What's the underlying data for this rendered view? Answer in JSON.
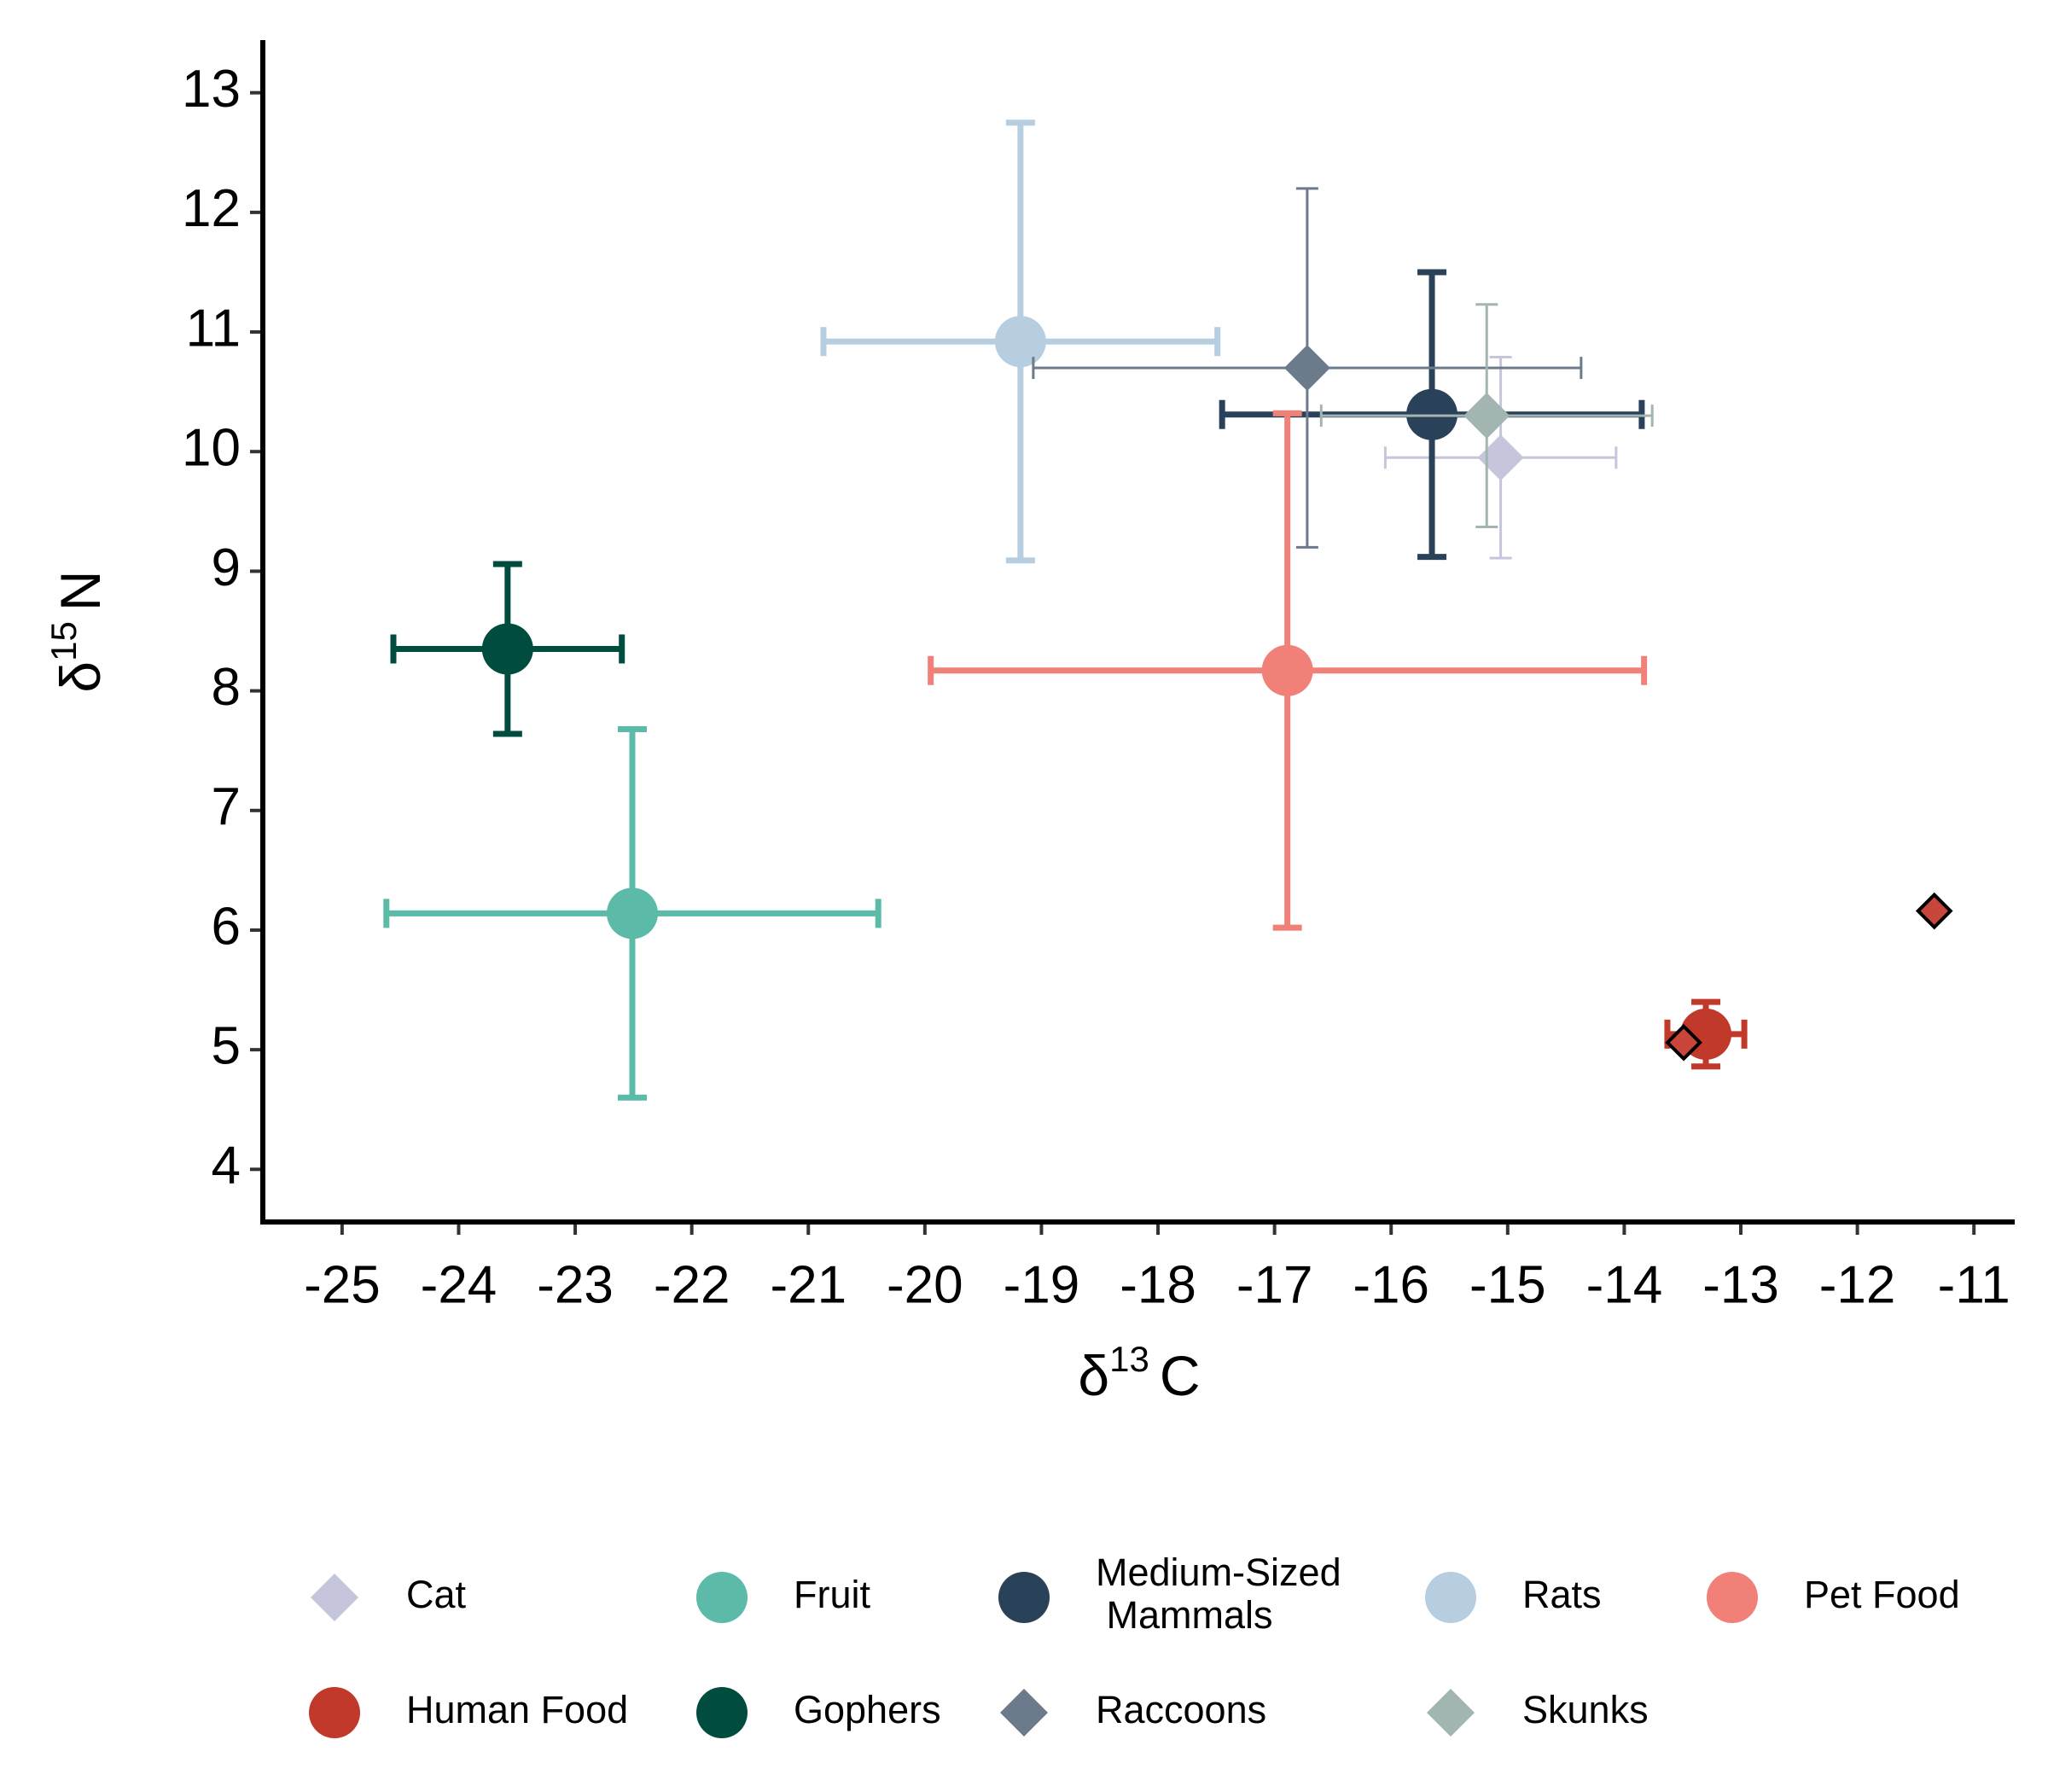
{
  "chart_data": {
    "type": "scatter",
    "xlabel": {
      "symbol": "δ",
      "superscript": "13",
      "text": "C"
    },
    "ylabel": {
      "symbol": "δ",
      "superscript": "15",
      "text": "N"
    },
    "xlim": [
      -25.68,
      -10.65
    ],
    "ylim": [
      3.56,
      13.44
    ],
    "xticks": [
      -25,
      -24,
      -23,
      -22,
      -21,
      -20,
      -19,
      -18,
      -17,
      -16,
      -15,
      -14,
      -13,
      -12,
      -11
    ],
    "yticks": [
      4,
      5,
      6,
      7,
      8,
      9,
      10,
      11,
      12,
      13
    ],
    "series": [
      {
        "name": "Cat",
        "color": "#c5c6dc",
        "shape": "diamond",
        "x": [
          -15.06
        ],
        "y": [
          9.95
        ],
        "xerr": [
          0.99
        ],
        "yerr": [
          0.84
        ]
      },
      {
        "name": "Fruit",
        "color": "#5bbba8",
        "shape": "circle",
        "x": [
          -22.51
        ],
        "y": [
          6.14
        ],
        "xerr": [
          2.11
        ],
        "yerr": [
          1.54
        ]
      },
      {
        "name": "Medium-Sized Mammals",
        "color": "#2a415a",
        "shape": "circle",
        "x": [
          -15.65
        ],
        "y": [
          10.31
        ],
        "xerr": [
          1.8
        ],
        "yerr": [
          1.19
        ]
      },
      {
        "name": "Rats",
        "color": "#b7cde0",
        "shape": "circle",
        "x": [
          -19.18
        ],
        "y": [
          10.92
        ],
        "xerr": [
          1.69
        ],
        "yerr": [
          1.83
        ]
      },
      {
        "name": "Pet Food",
        "color": "#f08078",
        "shape": "circle",
        "x": [
          -16.89
        ],
        "y": [
          8.17
        ],
        "xerr": [
          3.06
        ],
        "yerr": [
          2.15
        ]
      },
      {
        "name": "Human Food",
        "color": "#c0392b",
        "shape": "circle",
        "x": [
          -13.3
        ],
        "y": [
          5.13
        ],
        "xerr": [
          0.33
        ],
        "yerr": [
          0.27
        ]
      },
      {
        "name": "Gophers",
        "color": "#004d40",
        "shape": "circle",
        "x": [
          -23.58
        ],
        "y": [
          8.35
        ],
        "xerr": [
          0.98
        ],
        "yerr": [
          0.71
        ]
      },
      {
        "name": "Raccoons",
        "color": "#6b7b8c",
        "shape": "diamond",
        "x": [
          -16.72
        ],
        "y": [
          10.7
        ],
        "xerr": [
          2.35
        ],
        "yerr": [
          1.5
        ]
      },
      {
        "name": "Skunks",
        "color": "#a3b5b0",
        "shape": "diamond",
        "x": [
          -15.18
        ],
        "y": [
          10.3
        ],
        "xerr": [
          1.42
        ],
        "yerr": [
          0.93
        ]
      }
    ],
    "highlight_points": {
      "color": "#c9463d",
      "x": [
        -13.49,
        -11.34
      ],
      "y": [
        5.06,
        6.16
      ]
    }
  }
}
